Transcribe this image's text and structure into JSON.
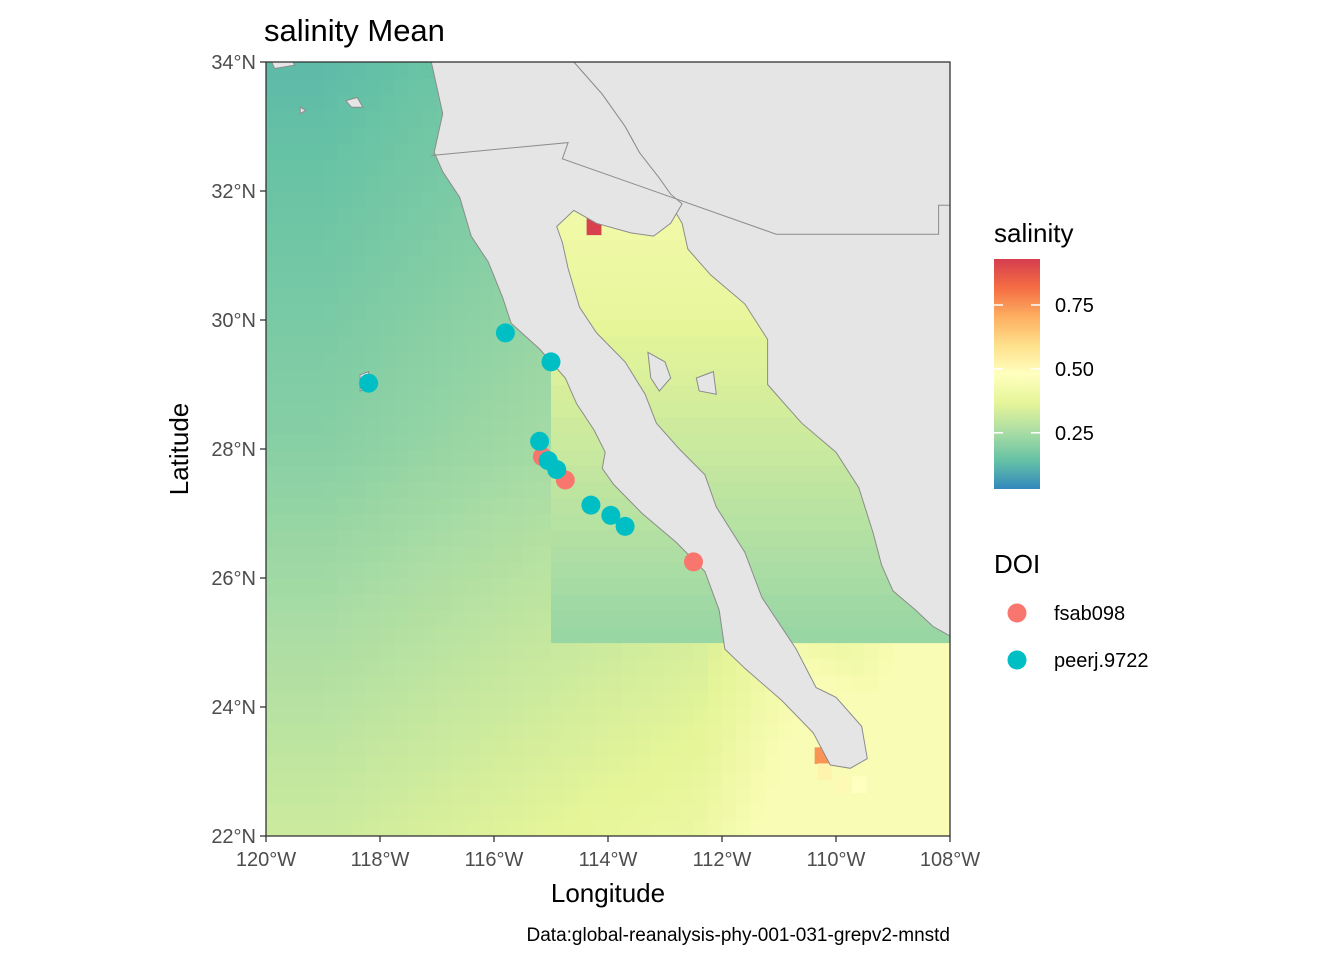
{
  "title": "salinity Mean",
  "caption": "Data:global-reanalysis-phy-001-031-grepv2-mnstd",
  "x_axis": {
    "label": "Longitude",
    "range": [
      -120,
      -108
    ],
    "ticks": [
      -120,
      -118,
      -116,
      -114,
      -112,
      -110,
      -108
    ],
    "tick_labels": [
      "120°W",
      "118°W",
      "116°W",
      "114°W",
      "112°W",
      "110°W",
      "108°W"
    ]
  },
  "y_axis": {
    "label": "Latitude",
    "range": [
      22,
      34
    ],
    "ticks": [
      22,
      24,
      26,
      28,
      30,
      32,
      34
    ],
    "tick_labels": [
      "22°N",
      "24°N",
      "26°N",
      "28°N",
      "30°N",
      "32°N",
      "34°N"
    ]
  },
  "colorbar": {
    "title": "salinity",
    "range": [
      0.03,
      0.93
    ],
    "ticks": [
      0.25,
      0.5,
      0.75
    ],
    "tick_labels": [
      "0.25",
      "0.50",
      "0.75"
    ],
    "palette": [
      "#3288bd",
      "#66c2a5",
      "#abdda4",
      "#e6f598",
      "#ffffbf",
      "#fee08b",
      "#fdae61",
      "#f46d43",
      "#d53e4f"
    ]
  },
  "legend": {
    "title": "DOI",
    "items": [
      {
        "label": "fsab098",
        "color": "#f8766d"
      },
      {
        "label": "peerj.9722",
        "color": "#00bfc4"
      }
    ]
  },
  "colors": {
    "land": "#e5e5e5",
    "land_border": "#8c8c8c",
    "panel_border": "#333333"
  },
  "chart_data": {
    "type": "heatmap",
    "title": "salinity Mean",
    "xlabel": "Longitude",
    "ylabel": "Latitude",
    "xlim": [
      -120,
      -108
    ],
    "ylim": [
      22,
      34
    ],
    "fill_variable": "salinity",
    "fill_range": [
      0.03,
      0.93
    ],
    "grid": false,
    "legend_position": "right",
    "points": [
      {
        "doi": "fsab098",
        "lon": -115.15,
        "lat": 27.88
      },
      {
        "doi": "fsab098",
        "lon": -114.75,
        "lat": 27.52
      },
      {
        "doi": "fsab098",
        "lon": -112.5,
        "lat": 26.25
      },
      {
        "doi": "peerj.9722",
        "lon": -118.2,
        "lat": 29.02
      },
      {
        "doi": "peerj.9722",
        "lon": -115.8,
        "lat": 29.8
      },
      {
        "doi": "peerj.9722",
        "lon": -115.0,
        "lat": 29.35
      },
      {
        "doi": "peerj.9722",
        "lon": -115.2,
        "lat": 28.12
      },
      {
        "doi": "peerj.9722",
        "lon": -115.05,
        "lat": 27.82
      },
      {
        "doi": "peerj.9722",
        "lon": -114.9,
        "lat": 27.68
      },
      {
        "doi": "peerj.9722",
        "lon": -114.3,
        "lat": 27.13
      },
      {
        "doi": "peerj.9722",
        "lon": -113.95,
        "lat": 26.97
      },
      {
        "doi": "peerj.9722",
        "lon": -113.7,
        "lat": 26.8
      }
    ],
    "coast_land": [
      [
        -114.6,
        34
      ],
      [
        -114.1,
        33.5
      ],
      [
        -113.7,
        33.0
      ],
      [
        -113.45,
        32.6
      ],
      [
        -113.2,
        32.2
      ],
      [
        -113.1,
        31.95
      ],
      [
        -112.9,
        31.8
      ],
      [
        -112.7,
        31.5
      ],
      [
        -112.6,
        31.1
      ],
      [
        -112.2,
        30.7
      ],
      [
        -111.6,
        30.25
      ],
      [
        -111.2,
        29.7
      ],
      [
        -111.2,
        29.0
      ],
      [
        -110.9,
        28.7
      ],
      [
        -110.6,
        28.4
      ],
      [
        -110.0,
        27.95
      ],
      [
        -109.6,
        27.4
      ],
      [
        -109.35,
        26.7
      ],
      [
        -109.2,
        26.2
      ],
      [
        -109.0,
        25.8
      ],
      [
        -108.6,
        25.5
      ],
      [
        -108.3,
        25.25
      ],
      [
        -108,
        25.1
      ],
      [
        -108,
        34
      ]
    ],
    "baja_land": [
      [
        -117.1,
        34
      ],
      [
        -116.9,
        33.2
      ],
      [
        -117.05,
        32.6
      ],
      [
        -116.9,
        32.3
      ],
      [
        -116.6,
        31.9
      ],
      [
        -116.4,
        31.3
      ],
      [
        -116.1,
        30.9
      ],
      [
        -115.85,
        30.35
      ],
      [
        -115.7,
        29.95
      ],
      [
        -115.2,
        29.55
      ],
      [
        -114.75,
        29.1
      ],
      [
        -114.55,
        28.7
      ],
      [
        -114.25,
        28.3
      ],
      [
        -114.05,
        27.95
      ],
      [
        -114.1,
        27.7
      ],
      [
        -113.9,
        27.45
      ],
      [
        -113.4,
        27.0
      ],
      [
        -112.8,
        26.55
      ],
      [
        -112.3,
        26.1
      ],
      [
        -112.05,
        25.5
      ],
      [
        -111.95,
        24.9
      ],
      [
        -111.6,
        24.6
      ],
      [
        -110.95,
        24.1
      ],
      [
        -110.4,
        23.6
      ],
      [
        -110.1,
        23.1
      ],
      [
        -109.75,
        23.05
      ],
      [
        -109.45,
        23.2
      ],
      [
        -109.55,
        23.7
      ],
      [
        -110.0,
        24.15
      ],
      [
        -110.35,
        24.3
      ],
      [
        -110.7,
        24.9
      ],
      [
        -111.3,
        25.7
      ],
      [
        -111.6,
        26.4
      ],
      [
        -112.1,
        27.1
      ],
      [
        -112.3,
        27.6
      ],
      [
        -112.75,
        28.0
      ],
      [
        -113.15,
        28.4
      ],
      [
        -113.35,
        28.85
      ],
      [
        -113.7,
        29.35
      ],
      [
        -114.2,
        29.8
      ],
      [
        -114.5,
        30.2
      ],
      [
        -114.7,
        30.8
      ],
      [
        -114.8,
        31.2
      ],
      [
        -114.9,
        31.45
      ],
      [
        -114.6,
        31.7
      ],
      [
        -114.2,
        31.5
      ],
      [
        -113.6,
        31.35
      ],
      [
        -113.2,
        31.3
      ],
      [
        -112.9,
        31.5
      ],
      [
        -112.7,
        31.8
      ],
      [
        -112.9,
        31.95
      ],
      [
        -113.1,
        32.2
      ],
      [
        -113.45,
        32.6
      ],
      [
        -113.7,
        33.0
      ],
      [
        -114.1,
        33.5
      ],
      [
        -114.6,
        34
      ]
    ],
    "islands": [
      [
        [
          -113.3,
          29.5
        ],
        [
          -113.0,
          29.35
        ],
        [
          -112.9,
          29.1
        ],
        [
          -113.1,
          28.9
        ],
        [
          -113.25,
          29.1
        ]
      ],
      [
        [
          -112.45,
          29.1
        ],
        [
          -112.15,
          29.2
        ],
        [
          -112.1,
          28.85
        ],
        [
          -112.4,
          28.9
        ]
      ],
      [
        [
          -118.35,
          29.15
        ],
        [
          -118.2,
          29.2
        ],
        [
          -118.2,
          28.95
        ],
        [
          -118.35,
          28.9
        ]
      ],
      [
        [
          -118.6,
          33.4
        ],
        [
          -118.4,
          33.45
        ],
        [
          -118.3,
          33.3
        ],
        [
          -118.5,
          33.3
        ]
      ],
      [
        [
          -119.9,
          34.0
        ],
        [
          -119.55,
          34.05
        ],
        [
          -119.5,
          33.95
        ],
        [
          -119.85,
          33.9
        ]
      ],
      [
        [
          -119.4,
          33.3
        ],
        [
          -119.3,
          33.25
        ],
        [
          -119.4,
          33.2
        ]
      ]
    ],
    "border": [
      [
        -117.1,
        32.55
      ],
      [
        -114.7,
        32.75
      ],
      [
        -114.8,
        32.5
      ],
      [
        -111.05,
        31.33
      ],
      [
        -108.2,
        31.33
      ],
      [
        -108.2,
        31.78
      ],
      [
        -108.0,
        31.78
      ]
    ],
    "hotspots": [
      {
        "lon": -114.25,
        "lat": 31.45,
        "value": 0.92
      },
      {
        "lon": -110.25,
        "lat": 23.25,
        "value": 0.75
      },
      {
        "lon": -110.2,
        "lat": 23.0,
        "value": 0.52
      },
      {
        "lon": -109.9,
        "lat": 22.8,
        "value": 0.5
      },
      {
        "lon": -109.6,
        "lat": 22.8,
        "value": 0.48
      }
    ]
  }
}
